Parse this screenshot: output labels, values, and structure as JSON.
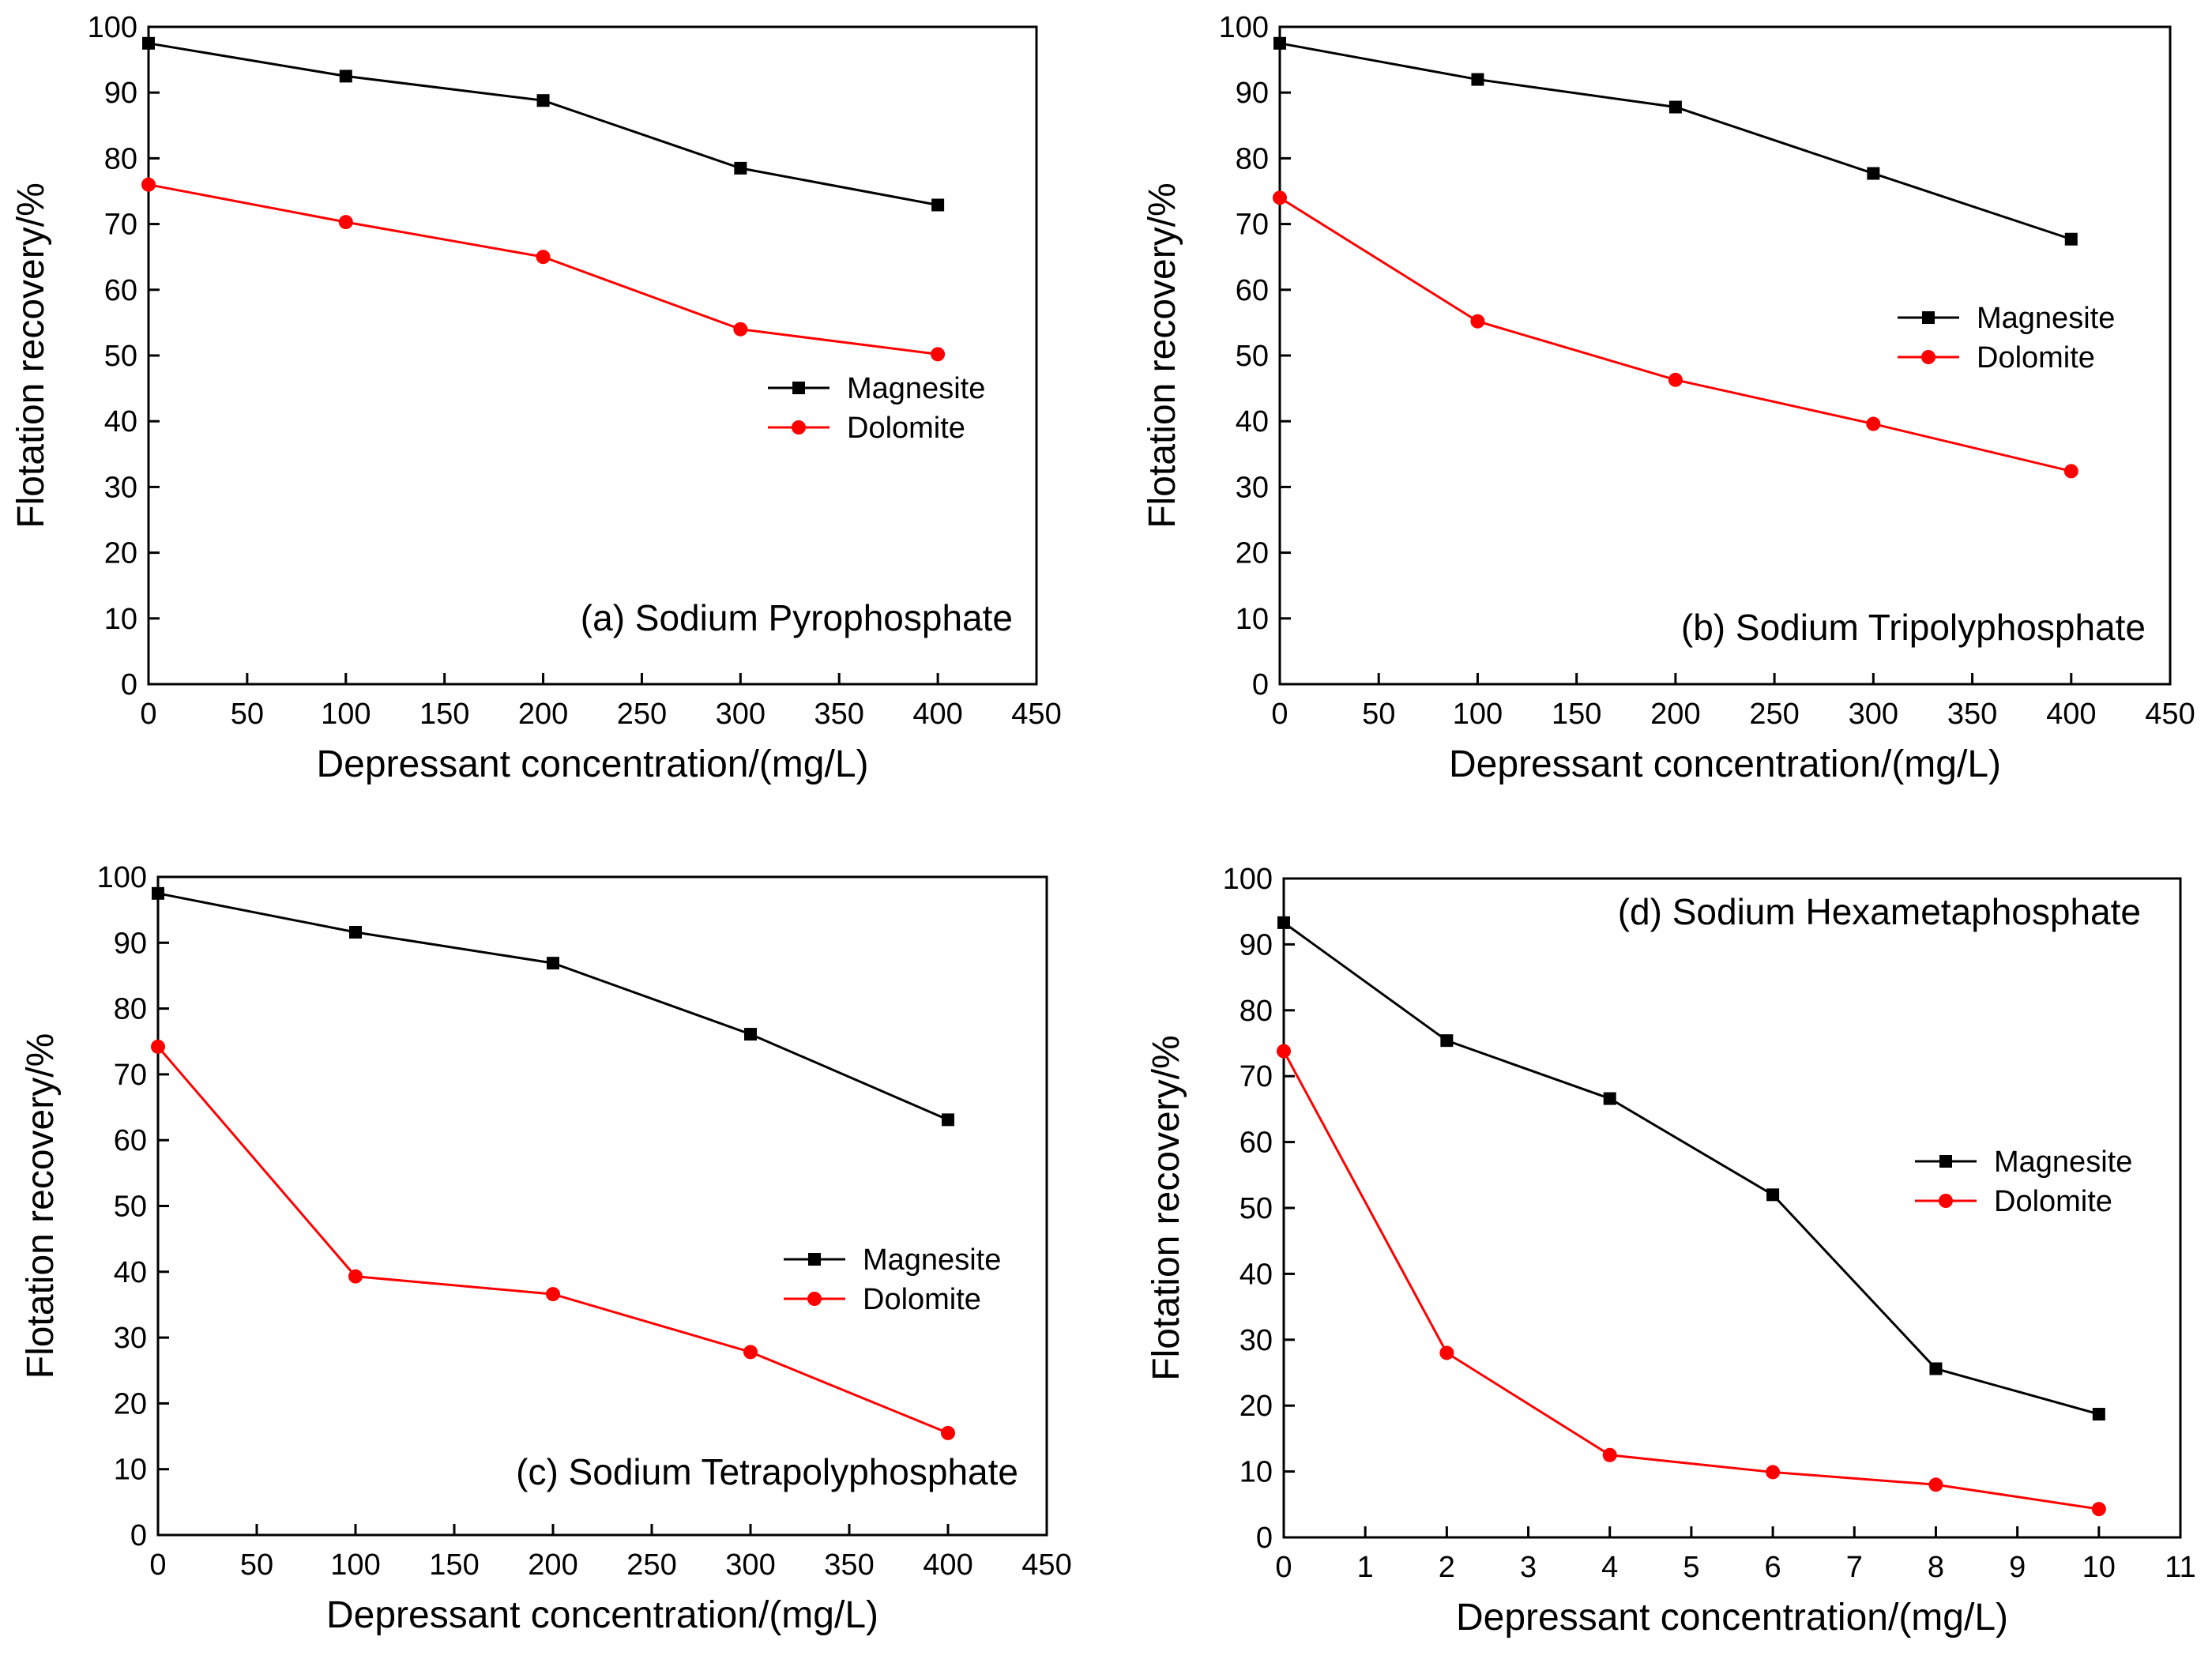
{
  "figure": {
    "panels_order": [
      "a",
      "b",
      "c",
      "d"
    ]
  },
  "legend": {
    "magnesite": "Magnesite",
    "dolomite": "Dolomite"
  },
  "colors": {
    "magnesite": "#000000",
    "dolomite": "#ff0000",
    "axis": "#000000"
  },
  "chart_data": [
    {
      "id": "a",
      "type": "line",
      "title": "(a) Sodium Pyrophosphate",
      "xlabel": "Depressant concentration/(mg/L)",
      "ylabel": "Flotation recovery/%",
      "xlim": [
        0,
        450
      ],
      "ylim": [
        0,
        100
      ],
      "xticks": [
        0,
        50,
        100,
        150,
        200,
        250,
        300,
        350,
        400,
        450
      ],
      "yticks": [
        0,
        10,
        20,
        30,
        40,
        50,
        60,
        70,
        80,
        90,
        100
      ],
      "legend_position": "middle-right",
      "series": [
        {
          "name": "Magnesite",
          "marker": "square",
          "x": [
            0,
            100,
            200,
            300,
            400
          ],
          "y": [
            97.5,
            92.5,
            88.8,
            78.5,
            72.9
          ]
        },
        {
          "name": "Dolomite",
          "marker": "circle",
          "x": [
            0,
            100,
            200,
            300,
            400
          ],
          "y": [
            76.0,
            70.3,
            65.0,
            54.0,
            50.2
          ]
        }
      ]
    },
    {
      "id": "b",
      "type": "line",
      "title": "(b) Sodium Tripolyphosphate",
      "xlabel": "Depressant concentration/(mg/L)",
      "ylabel": "Flotation recovery/%",
      "xlim": [
        0,
        450
      ],
      "ylim": [
        0,
        100
      ],
      "xticks": [
        0,
        50,
        100,
        150,
        200,
        250,
        300,
        350,
        400,
        450
      ],
      "yticks": [
        0,
        10,
        20,
        30,
        40,
        50,
        60,
        70,
        80,
        90,
        100
      ],
      "legend_position": "upper-right",
      "series": [
        {
          "name": "Magnesite",
          "marker": "square",
          "x": [
            0,
            100,
            200,
            300,
            400
          ],
          "y": [
            97.5,
            92.0,
            87.8,
            77.7,
            67.7
          ]
        },
        {
          "name": "Dolomite",
          "marker": "circle",
          "x": [
            0,
            100,
            200,
            300,
            400
          ],
          "y": [
            74.0,
            55.2,
            46.3,
            39.6,
            32.4
          ]
        }
      ]
    },
    {
      "id": "c",
      "type": "line",
      "title": "(c) Sodium Tetrapolyphosphate",
      "xlabel": "Depressant concentration/(mg/L)",
      "ylabel": "Flotation recovery/%",
      "xlim": [
        0,
        450
      ],
      "ylim": [
        0,
        100
      ],
      "xticks": [
        0,
        50,
        100,
        150,
        200,
        250,
        300,
        350,
        400,
        450
      ],
      "yticks": [
        0,
        10,
        20,
        30,
        40,
        50,
        60,
        70,
        80,
        90,
        100
      ],
      "legend_position": "middle-right",
      "series": [
        {
          "name": "Magnesite",
          "marker": "square",
          "x": [
            0,
            100,
            200,
            300,
            400
          ],
          "y": [
            97.5,
            91.6,
            86.9,
            76.1,
            63.1
          ]
        },
        {
          "name": "Dolomite",
          "marker": "circle",
          "x": [
            0,
            100,
            200,
            300,
            400
          ],
          "y": [
            74.2,
            39.3,
            36.6,
            27.8,
            15.5
          ]
        }
      ]
    },
    {
      "id": "d",
      "type": "line",
      "title": "(d) Sodium Hexametaphosphate",
      "xlabel": "Depressant concentration/(mg/L)",
      "ylabel": "Flotation recovery/%",
      "xlim": [
        0,
        11
      ],
      "ylim": [
        0,
        100
      ],
      "xticks": [
        0,
        1,
        2,
        3,
        4,
        5,
        6,
        7,
        8,
        9,
        10,
        11
      ],
      "yticks": [
        0,
        10,
        20,
        30,
        40,
        50,
        60,
        70,
        80,
        90,
        100
      ],
      "legend_position": "middle-right",
      "series": [
        {
          "name": "Magnesite",
          "marker": "square",
          "x": [
            0,
            2,
            4,
            6,
            8,
            10
          ],
          "y": [
            93.3,
            75.4,
            66.6,
            52.0,
            25.6,
            18.7
          ]
        },
        {
          "name": "Dolomite",
          "marker": "circle",
          "x": [
            0,
            2,
            4,
            6,
            8,
            10
          ],
          "y": [
            73.8,
            28.0,
            12.5,
            9.9,
            8.0,
            4.3
          ]
        }
      ]
    }
  ]
}
